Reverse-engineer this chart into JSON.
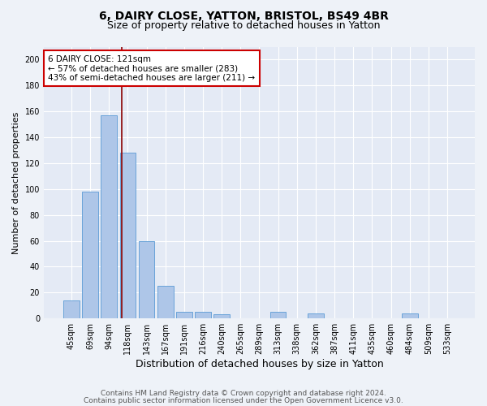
{
  "title1": "6, DAIRY CLOSE, YATTON, BRISTOL, BS49 4BR",
  "title2": "Size of property relative to detached houses in Yatton",
  "xlabel": "Distribution of detached houses by size in Yatton",
  "ylabel": "Number of detached properties",
  "bar_labels": [
    "45sqm",
    "69sqm",
    "94sqm",
    "118sqm",
    "143sqm",
    "167sqm",
    "191sqm",
    "216sqm",
    "240sqm",
    "265sqm",
    "289sqm",
    "313sqm",
    "338sqm",
    "362sqm",
    "387sqm",
    "411sqm",
    "435sqm",
    "460sqm",
    "484sqm",
    "509sqm",
    "533sqm"
  ],
  "bar_values": [
    14,
    98,
    157,
    128,
    60,
    25,
    5,
    5,
    3,
    0,
    0,
    5,
    0,
    4,
    0,
    0,
    0,
    0,
    4,
    0,
    0
  ],
  "bar_color": "#aec6e8",
  "bar_edge_color": "#5b9bd5",
  "ylim": [
    0,
    210
  ],
  "yticks": [
    0,
    20,
    40,
    60,
    80,
    100,
    120,
    140,
    160,
    180,
    200
  ],
  "property_size": 121,
  "red_line_color": "#8b0000",
  "annotation_line1": "6 DAIRY CLOSE: 121sqm",
  "annotation_line2": "← 57% of detached houses are smaller (283)",
  "annotation_line3": "43% of semi-detached houses are larger (211) →",
  "annotation_box_color": "#ffffff",
  "annotation_box_edge_color": "#cc0000",
  "footnote1": "Contains HM Land Registry data © Crown copyright and database right 2024.",
  "footnote2": "Contains public sector information licensed under the Open Government Licence v3.0.",
  "bg_color": "#eef2f8",
  "plot_bg_color": "#e4eaf5",
  "grid_color": "#ffffff",
  "title1_fontsize": 10,
  "title2_fontsize": 9,
  "xlabel_fontsize": 9,
  "ylabel_fontsize": 8,
  "tick_fontsize": 7,
  "annotation_fontsize": 7.5,
  "footnote_fontsize": 6.5
}
